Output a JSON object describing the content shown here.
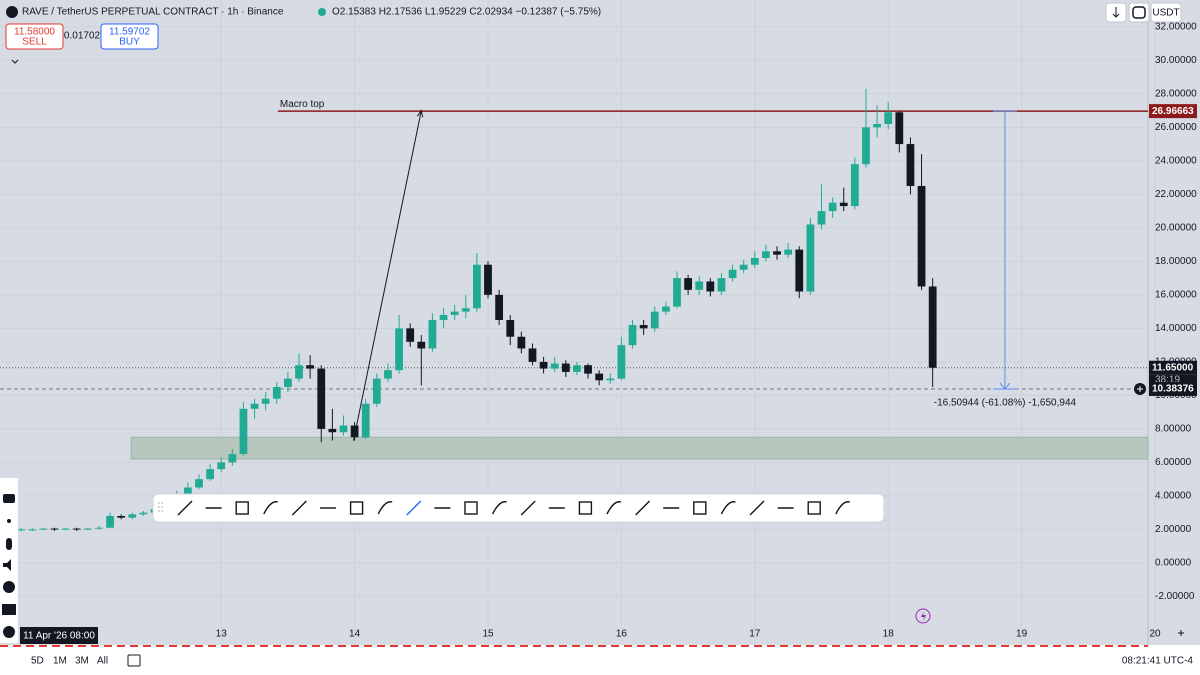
{
  "header": {
    "symbol": "RAVE / TetherUS PERPETUAL CONTRACT · 1h · Binance",
    "ohlc": "O2.15383 H2.17536 L1.95229 C2.02934 −0.12387 (−5.75%)",
    "currency": "USDT"
  },
  "trade": {
    "sell_price": "11.58000",
    "sell": "SELL",
    "spread": "0.01702",
    "buy_price": "11.59702",
    "buy": "BUY"
  },
  "chart_data": {
    "type": "candlestick",
    "up_color": "#22ab94",
    "down_color": "#131722",
    "grid": true,
    "xlim": [
      8.2,
      216.9
    ],
    "xticks": [
      {
        "value": 48,
        "label": "13"
      },
      {
        "value": 72,
        "label": "14"
      },
      {
        "value": 96,
        "label": "15"
      },
      {
        "value": 120,
        "label": "16"
      },
      {
        "value": 144,
        "label": "17"
      },
      {
        "value": 168,
        "label": "18"
      },
      {
        "value": 192,
        "label": "19"
      },
      {
        "value": 216,
        "label": "20"
      }
    ],
    "ylim": [
      -4.9,
      33.6
    ],
    "yticks": [
      {
        "value": 32,
        "label": "32.00000"
      },
      {
        "value": 30,
        "label": "30.00000"
      },
      {
        "value": 28,
        "label": "28.00000"
      },
      {
        "value": 26,
        "label": "26.00000"
      },
      {
        "value": 24,
        "label": "24.00000"
      },
      {
        "value": 22,
        "label": "22.00000"
      },
      {
        "value": 20,
        "label": "20.00000"
      },
      {
        "value": 18,
        "label": "18.00000"
      },
      {
        "value": 16,
        "label": "16.00000"
      },
      {
        "value": 14,
        "label": "14.00000"
      },
      {
        "value": 12,
        "label": "12.00000"
      },
      {
        "value": 10,
        "label": "10.00000"
      },
      {
        "value": 8,
        "label": "8.00000"
      },
      {
        "value": 6,
        "label": "6.00000"
      },
      {
        "value": 4,
        "label": "4.00000"
      },
      {
        "value": 2,
        "label": "2.00000"
      },
      {
        "value": 0,
        "label": "0.00000"
      },
      {
        "value": -2,
        "label": "-2.00000"
      }
    ],
    "crosshair_label": "11 Apr '26  08:00",
    "candles": [
      [
        12,
        1.95,
        2.1,
        1.9,
        2.0
      ],
      [
        14,
        2.0,
        2.1,
        1.9,
        2.0
      ],
      [
        16,
        2.0,
        2.1,
        1.95,
        2.05
      ],
      [
        18,
        2.05,
        2.1,
        1.9,
        2.0
      ],
      [
        20,
        2.0,
        2.1,
        1.95,
        2.05
      ],
      [
        22,
        2.05,
        2.1,
        1.9,
        2.0
      ],
      [
        24,
        2.0,
        2.1,
        1.95,
        2.05
      ],
      [
        26,
        2.05,
        2.2,
        2.0,
        2.1
      ],
      [
        28,
        2.1,
        3.0,
        2.1,
        2.8
      ],
      [
        30,
        2.8,
        2.9,
        2.6,
        2.7
      ],
      [
        32,
        2.7,
        3.0,
        2.6,
        2.9
      ],
      [
        34,
        2.9,
        3.1,
        2.8,
        3.0
      ],
      [
        36,
        3.0,
        3.3,
        2.9,
        3.2
      ],
      [
        38,
        3.2,
        3.7,
        3.1,
        3.5
      ],
      [
        40,
        3.5,
        4.3,
        3.4,
        4.1
      ],
      [
        42,
        4.1,
        4.8,
        4.0,
        4.5
      ],
      [
        44,
        4.5,
        5.3,
        4.4,
        5.0
      ],
      [
        46,
        5.0,
        5.9,
        4.9,
        5.6
      ],
      [
        48,
        5.6,
        6.3,
        5.4,
        6.0
      ],
      [
        50,
        6.0,
        6.8,
        5.8,
        6.5
      ],
      [
        52,
        6.5,
        9.6,
        6.4,
        9.2
      ],
      [
        54,
        9.2,
        9.8,
        8.6,
        9.5
      ],
      [
        56,
        9.5,
        10.2,
        9.1,
        9.8
      ],
      [
        58,
        9.8,
        10.8,
        9.5,
        10.5
      ],
      [
        60,
        10.5,
        11.4,
        10.2,
        11.0
      ],
      [
        62,
        11.0,
        12.5,
        10.8,
        11.8
      ],
      [
        64,
        11.8,
        12.4,
        11.0,
        11.6
      ],
      [
        66,
        11.6,
        11.8,
        7.2,
        8.0
      ],
      [
        68,
        8.0,
        9.2,
        7.3,
        7.8
      ],
      [
        70,
        7.8,
        8.8,
        7.6,
        8.2
      ],
      [
        72,
        8.2,
        8.4,
        7.3,
        7.5
      ],
      [
        74,
        7.5,
        9.8,
        7.4,
        9.5
      ],
      [
        76,
        9.5,
        11.3,
        9.3,
        11.0
      ],
      [
        78,
        11.0,
        11.9,
        10.8,
        11.5
      ],
      [
        80,
        11.5,
        14.8,
        11.3,
        14.0
      ],
      [
        82,
        14.0,
        14.3,
        12.9,
        13.2
      ],
      [
        84,
        13.2,
        13.6,
        10.6,
        12.8
      ],
      [
        86,
        12.8,
        14.9,
        12.6,
        14.5
      ],
      [
        88,
        14.5,
        15.2,
        14.0,
        14.8
      ],
      [
        90,
        14.8,
        15.4,
        14.5,
        15.0
      ],
      [
        92,
        15.0,
        16.0,
        14.6,
        15.2
      ],
      [
        94,
        15.2,
        18.5,
        15.0,
        17.8
      ],
      [
        96,
        17.8,
        18.0,
        15.8,
        16.0
      ],
      [
        98,
        16.0,
        16.3,
        14.2,
        14.5
      ],
      [
        100,
        14.5,
        14.8,
        13.0,
        13.5
      ],
      [
        102,
        13.5,
        13.8,
        12.5,
        12.8
      ],
      [
        104,
        12.8,
        13.1,
        11.8,
        12.0
      ],
      [
        106,
        12.0,
        12.3,
        11.3,
        11.6
      ],
      [
        108,
        11.6,
        12.3,
        11.4,
        11.9
      ],
      [
        110,
        11.9,
        12.1,
        11.1,
        11.4
      ],
      [
        112,
        11.4,
        12.0,
        11.2,
        11.8
      ],
      [
        114,
        11.8,
        11.9,
        11.0,
        11.3
      ],
      [
        116,
        11.3,
        11.5,
        10.6,
        10.9
      ],
      [
        118,
        10.9,
        11.3,
        10.7,
        11.0
      ],
      [
        120,
        11.0,
        13.5,
        10.9,
        13.0
      ],
      [
        122,
        13.0,
        14.5,
        12.8,
        14.2
      ],
      [
        124,
        14.2,
        14.5,
        13.6,
        14.0
      ],
      [
        126,
        14.0,
        15.3,
        13.8,
        15.0
      ],
      [
        128,
        15.0,
        15.6,
        14.8,
        15.3
      ],
      [
        130,
        15.3,
        17.4,
        15.2,
        17.0
      ],
      [
        132,
        17.0,
        17.2,
        16.0,
        16.3
      ],
      [
        134,
        16.3,
        17.1,
        16.0,
        16.8
      ],
      [
        136,
        16.8,
        17.0,
        15.9,
        16.2
      ],
      [
        138,
        16.2,
        17.3,
        16.0,
        17.0
      ],
      [
        140,
        17.0,
        17.8,
        16.8,
        17.5
      ],
      [
        142,
        17.5,
        18.1,
        17.3,
        17.8
      ],
      [
        144,
        17.8,
        18.6,
        17.6,
        18.2
      ],
      [
        146,
        18.2,
        19.0,
        18.0,
        18.6
      ],
      [
        148,
        18.6,
        18.9,
        18.1,
        18.4
      ],
      [
        150,
        18.4,
        19.1,
        18.2,
        18.7
      ],
      [
        152,
        18.7,
        18.9,
        15.8,
        16.2
      ],
      [
        154,
        16.2,
        20.6,
        16.0,
        20.2
      ],
      [
        156,
        20.2,
        22.6,
        19.9,
        21.0
      ],
      [
        158,
        21.0,
        21.8,
        20.6,
        21.5
      ],
      [
        160,
        21.5,
        22.4,
        21.0,
        21.3
      ],
      [
        162,
        21.3,
        24.2,
        21.1,
        23.8
      ],
      [
        164,
        23.8,
        28.3,
        23.6,
        26.0
      ],
      [
        166,
        26.0,
        27.3,
        25.4,
        26.2
      ],
      [
        168,
        26.2,
        27.5,
        25.9,
        26.9
      ],
      [
        170,
        26.9,
        27.0,
        24.5,
        25.0
      ],
      [
        172,
        25.0,
        25.4,
        22.0,
        22.5
      ],
      [
        174,
        22.5,
        24.4,
        16.3,
        16.5
      ],
      [
        176,
        16.5,
        17.0,
        10.5,
        11.65
      ]
    ],
    "annotations": {
      "macro_top": {
        "label": "Macro top",
        "start": 58.2,
        "price": {
          "value": 26.96663,
          "label": "26.96663"
        }
      },
      "last_price": {
        "value": 11.65,
        "label": "11.65000",
        "countdown": "38:19"
      },
      "ref_price": {
        "value": 10.38376,
        "label": "10.38376"
      },
      "zone": {
        "start": 31.8,
        "low": 6.2,
        "high": 7.5
      },
      "arrow": {
        "t": [
          71.8,
          84
        ],
        "v": [
          7.3,
          27
        ]
      },
      "measure": {
        "t": 189,
        "label": "-16.50944 (-61.08%) -1,650,944"
      }
    }
  },
  "footer": {
    "ranges": [
      "5D",
      "1M",
      "3M",
      "All"
    ],
    "clock": "08:21:41 UTC-4"
  }
}
